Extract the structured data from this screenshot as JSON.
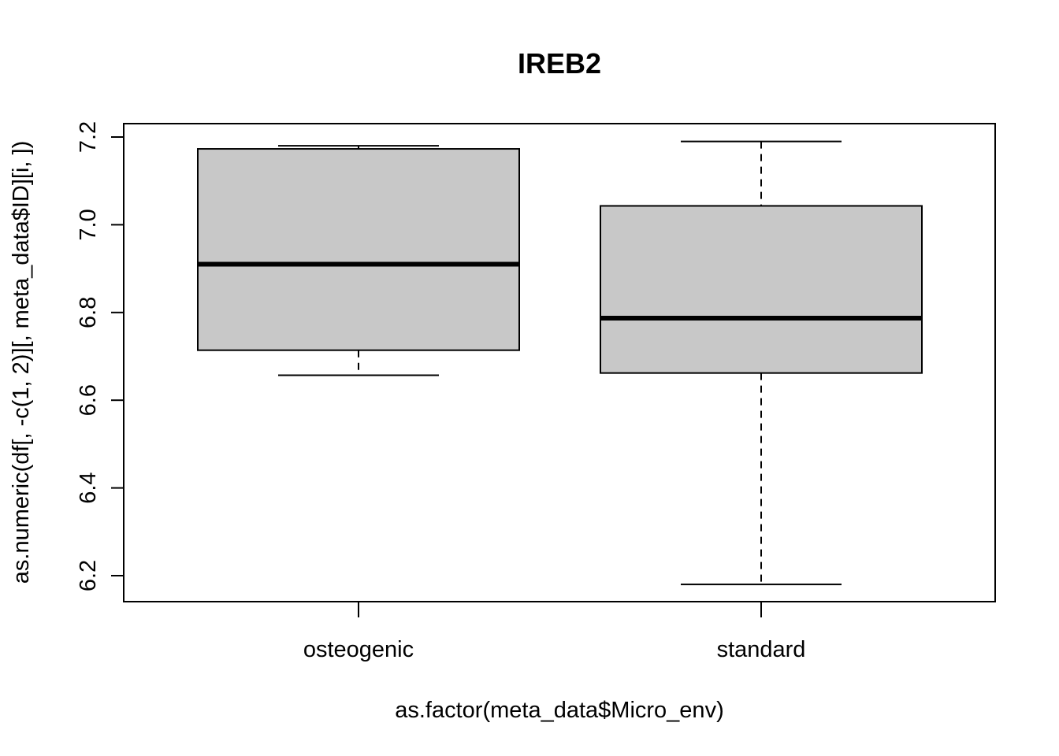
{
  "chart_data": {
    "type": "box",
    "title": "IREB2",
    "xlabel": "as.factor(meta_data$Micro_env)",
    "ylabel": "as.numeric(df[, -c(1, 2)][, meta_data$ID][i, ])",
    "categories": [
      "osteogenic",
      "standard"
    ],
    "boxes": [
      {
        "category": "osteogenic",
        "min": 6.657,
        "q1": 6.714,
        "median": 6.91,
        "q3": 7.173,
        "max": 7.18
      },
      {
        "category": "standard",
        "min": 6.18,
        "q1": 6.662,
        "median": 6.787,
        "q3": 7.043,
        "max": 7.19
      }
    ],
    "yticks": [
      6.2,
      6.4,
      6.6,
      6.8,
      7.0,
      7.2
    ],
    "ytick_labels": [
      "6.2",
      "6.4",
      "6.6",
      "6.8",
      "7.0",
      "7.2"
    ],
    "ylim": [
      6.14,
      7.23
    ],
    "box_fill": "#c8c8c8",
    "line_color": "#000000",
    "grid": false,
    "legend": "none"
  }
}
